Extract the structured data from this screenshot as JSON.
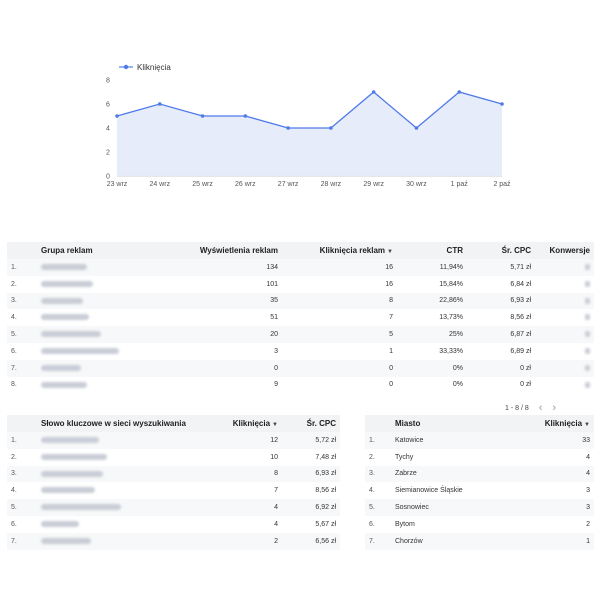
{
  "chart": {
    "legend": "Kliknięcia",
    "color": "#4f7ae8",
    "y_ticks": [
      "0",
      "2",
      "4",
      "6",
      "8"
    ]
  },
  "chart_data": {
    "type": "area",
    "categories": [
      "23 wrz",
      "24 wrz",
      "25 wrz",
      "26 wrz",
      "27 wrz",
      "28 wrz",
      "29 wrz",
      "30 wrz",
      "1 paź",
      "2 paź"
    ],
    "series": [
      {
        "name": "Kliknięcia",
        "values": [
          5,
          6,
          5,
          5,
          4,
          4,
          7,
          4,
          7,
          6
        ]
      }
    ],
    "ylim": [
      0,
      8
    ],
    "grid": false,
    "legend_position": "top-left"
  },
  "ads_table": {
    "headers": [
      "Grupa reklam",
      "Wyświetlenia reklam",
      "Kliknięcia reklam",
      "CTR",
      "Śr. CPC",
      "Konwersje"
    ],
    "sort_icon": "▼",
    "rows": [
      {
        "idx": "1.",
        "impr": "134",
        "clicks": "16",
        "ctr": "11,94%",
        "cpc": "5,71 zł"
      },
      {
        "idx": "2.",
        "impr": "101",
        "clicks": "16",
        "ctr": "15,84%",
        "cpc": "6,84 zł"
      },
      {
        "idx": "3.",
        "impr": "35",
        "clicks": "8",
        "ctr": "22,86%",
        "cpc": "6,93 zł"
      },
      {
        "idx": "4.",
        "impr": "51",
        "clicks": "7",
        "ctr": "13,73%",
        "cpc": "8,56 zł"
      },
      {
        "idx": "5.",
        "impr": "20",
        "clicks": "5",
        "ctr": "25%",
        "cpc": "6,87 zł"
      },
      {
        "idx": "6.",
        "impr": "3",
        "clicks": "1",
        "ctr": "33,33%",
        "cpc": "6,89 zł"
      },
      {
        "idx": "7.",
        "impr": "0",
        "clicks": "0",
        "ctr": "0%",
        "cpc": "0 zł"
      },
      {
        "idx": "8.",
        "impr": "9",
        "clicks": "0",
        "ctr": "0%",
        "cpc": "0 zł"
      }
    ]
  },
  "pager": {
    "text": "1 - 8 / 8",
    "prev": "‹",
    "next": "›"
  },
  "keywords_table": {
    "headers": [
      "Słowo kluczowe w sieci wyszukiwania",
      "Kliknięcia",
      "Śr. CPC"
    ],
    "sort_icon": "▼",
    "rows": [
      {
        "idx": "1.",
        "clicks": "12",
        "cpc": "5,72 zł"
      },
      {
        "idx": "2.",
        "clicks": "10",
        "cpc": "7,48 zł"
      },
      {
        "idx": "3.",
        "clicks": "8",
        "cpc": "6,93 zł"
      },
      {
        "idx": "4.",
        "clicks": "7",
        "cpc": "8,56 zł"
      },
      {
        "idx": "5.",
        "clicks": "4",
        "cpc": "6,92 zł"
      },
      {
        "idx": "6.",
        "clicks": "4",
        "cpc": "5,67 zł"
      },
      {
        "idx": "7.",
        "clicks": "2",
        "cpc": "6,56 zł"
      }
    ]
  },
  "city_table": {
    "headers": [
      "Miasto",
      "Kliknięcia"
    ],
    "sort_icon": "▼",
    "rows": [
      {
        "idx": "1.",
        "city": "Katowice",
        "clicks": "33"
      },
      {
        "idx": "2.",
        "city": "Tychy",
        "clicks": "4"
      },
      {
        "idx": "3.",
        "city": "Zabrze",
        "clicks": "4"
      },
      {
        "idx": "4.",
        "city": "Siemianowice Śląskie",
        "clicks": "3"
      },
      {
        "idx": "5.",
        "city": "Sosnowiec",
        "clicks": "3"
      },
      {
        "idx": "6.",
        "city": "Bytom",
        "clicks": "2"
      },
      {
        "idx": "7.",
        "city": "Chorzów",
        "clicks": "1"
      }
    ]
  }
}
